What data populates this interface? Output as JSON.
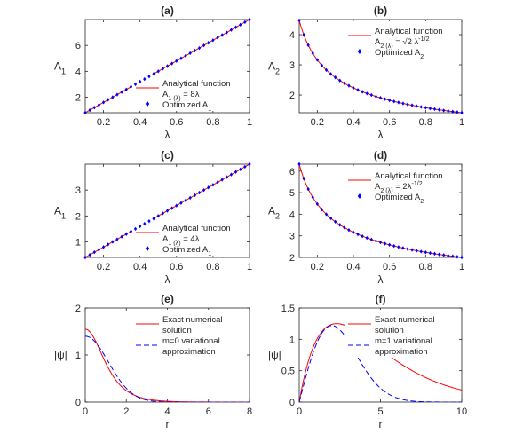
{
  "colors": {
    "analytic": "#ff0000",
    "optimized": "#0000ff",
    "axis": "#262626",
    "box": "#ffffff"
  },
  "chart_data": [
    {
      "type": "line",
      "title": "(a)",
      "xlabel": "λ",
      "ylabel": "A",
      "ylabel_sub": "1",
      "xlim": [
        0.1,
        1
      ],
      "ylim": [
        0.8,
        8
      ],
      "xticks": [
        0.2,
        0.4,
        0.6,
        0.8,
        1
      ],
      "xticklabels": [
        "0.2",
        "0.4",
        "0.6",
        "0.8",
        "1"
      ],
      "yticks": [
        2,
        4,
        6
      ],
      "yticklabels": [
        "2",
        "4",
        "6"
      ],
      "curves": [
        {
          "kind": "line",
          "color": "red",
          "fn": "linear",
          "a": 8,
          "xmin": 0.1,
          "xmax": 1
        },
        {
          "kind": "diamonds",
          "color": "blue",
          "fn": "linear",
          "a": 8,
          "xmin": 0.1,
          "xmax": 1,
          "n": 37
        }
      ],
      "legend": {
        "loc": "lower-right",
        "entries": [
          {
            "kind": "line",
            "color": "red",
            "lines": [
              [
                "Analytical function"
              ],
              [
                "A",
                "_1 (λ)",
                " = 8λ"
              ]
            ]
          },
          {
            "kind": "diamond",
            "color": "blue",
            "lines": [
              [
                "Optimized A",
                "_1"
              ]
            ]
          }
        ]
      }
    },
    {
      "type": "line",
      "title": "(b)",
      "xlabel": "λ",
      "ylabel": "A",
      "ylabel_sub": "2",
      "xlim": [
        0.1,
        1
      ],
      "ylim": [
        1.414,
        4.5
      ],
      "xticks": [
        0.2,
        0.4,
        0.6,
        0.8,
        1
      ],
      "xticklabels": [
        "0.2",
        "0.4",
        "0.6",
        "0.8",
        "1"
      ],
      "yticks": [
        2,
        3,
        4
      ],
      "yticklabels": [
        "2",
        "3",
        "4"
      ],
      "curves": [
        {
          "kind": "line",
          "color": "red",
          "fn": "invsqrt",
          "a": 1.41421,
          "xmin": 0.1,
          "xmax": 1
        },
        {
          "kind": "diamonds",
          "color": "blue",
          "fn": "invsqrt",
          "a": 1.41421,
          "xmin": 0.1,
          "xmax": 1,
          "n": 37
        }
      ],
      "legend": {
        "loc": "top-right",
        "entries": [
          {
            "kind": "line",
            "color": "red",
            "lines": [
              [
                "Analytical function"
              ],
              [
                "A",
                "_2 (λ)",
                " = √2 λ",
                "^-1/2"
              ]
            ]
          },
          {
            "kind": "diamond",
            "color": "blue",
            "lines": [
              [
                "Optimized A",
                "_2"
              ]
            ]
          }
        ]
      }
    },
    {
      "type": "line",
      "title": "(c)",
      "xlabel": "λ",
      "ylabel": "A",
      "ylabel_sub": "1",
      "xlim": [
        0.1,
        1
      ],
      "ylim": [
        0.4,
        4
      ],
      "xticks": [
        0.2,
        0.4,
        0.6,
        0.8,
        1
      ],
      "xticklabels": [
        "0.2",
        "0.4",
        "0.6",
        "0.8",
        "1"
      ],
      "yticks": [
        1,
        2,
        3
      ],
      "yticklabels": [
        "1",
        "2",
        "3"
      ],
      "curves": [
        {
          "kind": "line",
          "color": "red",
          "fn": "linear",
          "a": 4,
          "xmin": 0.1,
          "xmax": 1
        },
        {
          "kind": "diamonds",
          "color": "blue",
          "fn": "linear",
          "a": 4,
          "xmin": 0.1,
          "xmax": 1,
          "n": 37
        }
      ],
      "legend": {
        "loc": "lower-right",
        "entries": [
          {
            "kind": "line",
            "color": "red",
            "lines": [
              [
                "Analytical function"
              ],
              [
                "A",
                "_1 (λ)",
                " = 4λ"
              ]
            ]
          },
          {
            "kind": "diamond",
            "color": "blue",
            "lines": [
              [
                "Optimized A",
                "_1"
              ]
            ]
          }
        ]
      }
    },
    {
      "type": "line",
      "title": "(d)",
      "xlabel": "λ",
      "ylabel": "A",
      "ylabel_sub": "2",
      "xlim": [
        0.1,
        1
      ],
      "ylim": [
        2,
        6.32
      ],
      "xticks": [
        0.2,
        0.4,
        0.6,
        0.8,
        1
      ],
      "xticklabels": [
        "0.2",
        "0.4",
        "0.6",
        "0.8",
        "1"
      ],
      "yticks": [
        2,
        3,
        4,
        5,
        6
      ],
      "yticklabels": [
        "2",
        "3",
        "4",
        "5",
        "6"
      ],
      "curves": [
        {
          "kind": "line",
          "color": "red",
          "fn": "invsqrt",
          "a": 2,
          "xmin": 0.1,
          "xmax": 1
        },
        {
          "kind": "diamonds",
          "color": "blue",
          "fn": "invsqrt",
          "a": 2,
          "xmin": 0.1,
          "xmax": 1,
          "n": 37
        }
      ],
      "legend": {
        "loc": "top-right",
        "entries": [
          {
            "kind": "line",
            "color": "red",
            "lines": [
              [
                "Analytical function"
              ],
              [
                "A",
                "_2 (λ)",
                " = 2λ",
                "^-1/2"
              ]
            ]
          },
          {
            "kind": "diamond",
            "color": "blue",
            "lines": [
              [
                "Optimized A",
                "_2"
              ]
            ]
          }
        ]
      }
    },
    {
      "type": "line",
      "title": "(e)",
      "xlabel": "r",
      "ylabel": "|ψ|",
      "ylabel_sub": "",
      "xlim": [
        0,
        8
      ],
      "ylim": [
        0,
        2
      ],
      "xticks": [
        0,
        2,
        4,
        6,
        8
      ],
      "xticklabels": [
        "0",
        "2",
        "4",
        "6",
        "8"
      ],
      "yticks": [
        0,
        1,
        2
      ],
      "yticklabels": [
        "0",
        "1",
        "2"
      ],
      "curves": [
        {
          "kind": "line",
          "color": "red",
          "fn": "sech_pow",
          "a": 1.55,
          "b": 0.9,
          "p": 1.2,
          "xmin": 0,
          "xmax": 8
        },
        {
          "kind": "dashed",
          "color": "blue",
          "fn": "gauss",
          "a": 1.4,
          "b": 1.6,
          "xmin": 0,
          "xmax": 8
        }
      ],
      "legend": {
        "loc": "top-right",
        "entries": [
          {
            "kind": "line",
            "color": "red",
            "lines": [
              [
                "Exact numerical"
              ],
              [
                "solution"
              ]
            ]
          },
          {
            "kind": "dashed",
            "color": "blue",
            "lines": [
              [
                "m=0 variational"
              ],
              [
                "approximation"
              ]
            ]
          }
        ]
      }
    },
    {
      "type": "line",
      "title": "(f)",
      "xlabel": "r",
      "ylabel": "|ψ|",
      "ylabel_sub": "",
      "xlim": [
        0,
        10
      ],
      "ylim": [
        0,
        1.5
      ],
      "xticks": [
        0,
        5,
        10
      ],
      "xticklabels": [
        "0",
        "5",
        "10"
      ],
      "yticks": [
        0,
        0.5,
        1,
        1.5
      ],
      "yticklabels": [
        "0",
        "0.5",
        "1",
        "1.5"
      ],
      "curves": [
        {
          "kind": "line",
          "color": "red",
          "fn": "ring",
          "a": 1.25,
          "b": 2.3,
          "xmin": 0,
          "xmax": 10
        },
        {
          "kind": "dashed",
          "color": "blue",
          "fn": "ring_gauss",
          "a": 1.22,
          "b": 2.0,
          "xmin": 0,
          "xmax": 10
        }
      ],
      "legend": {
        "loc": "top-right",
        "entries": [
          {
            "kind": "line",
            "color": "red",
            "lines": [
              [
                "Exact numerical"
              ],
              [
                "solution"
              ]
            ]
          },
          {
            "kind": "dashed",
            "color": "blue",
            "lines": [
              [
                "m=1 variational"
              ],
              [
                "approximation"
              ]
            ]
          }
        ]
      }
    }
  ]
}
